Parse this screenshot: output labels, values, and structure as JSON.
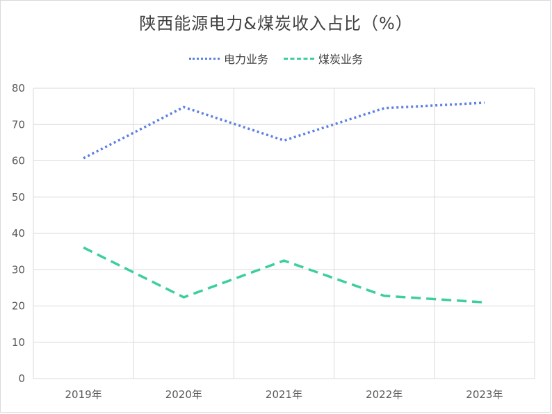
{
  "chart_data": {
    "type": "line",
    "title": "陕西能源电力&煤炭收入占比（%）",
    "categories": [
      "2019年",
      "2020年",
      "2021年",
      "2022年",
      "2023年"
    ],
    "series": [
      {
        "name": "电力业务",
        "values": [
          60.7,
          74.8,
          65.6,
          74.5,
          76.0
        ],
        "color": "#5b7fe3",
        "style": "dotted"
      },
      {
        "name": "煤炭业务",
        "values": [
          36.1,
          22.4,
          32.5,
          22.8,
          21.0
        ],
        "color": "#3dcf9b",
        "style": "dashed"
      }
    ],
    "ylim": [
      0,
      80
    ],
    "yticks": [
      0,
      10,
      20,
      30,
      40,
      50,
      60,
      70,
      80
    ],
    "grid": true,
    "legend_position": "top"
  }
}
